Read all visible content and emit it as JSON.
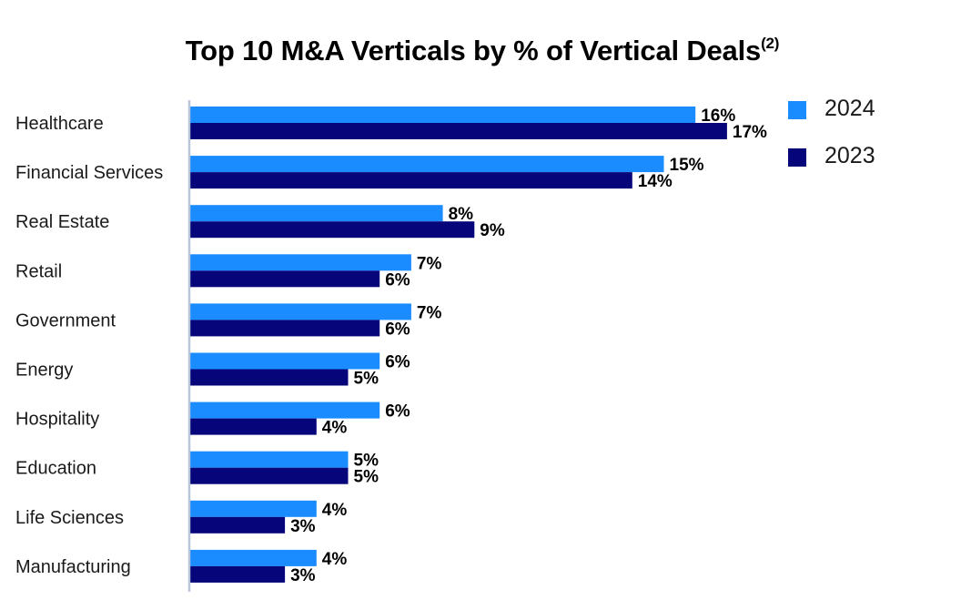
{
  "title": "Top 10 M&A Verticals by % of Vertical Deals",
  "title_superscript": "(2)",
  "legend": [
    {
      "label": "2024",
      "color": "#1a8cff"
    },
    {
      "label": "2023",
      "color": "#06067a"
    }
  ],
  "chart_data": {
    "type": "bar",
    "orientation": "horizontal",
    "title": "Top 10 M&A Verticals by % of Vertical Deals(2)",
    "categories": [
      "Healthcare",
      "Financial Services",
      "Real Estate",
      "Retail",
      "Government",
      "Energy",
      "Hospitality",
      "Education",
      "Life Sciences",
      "Manufacturing"
    ],
    "series": [
      {
        "name": "2024",
        "color": "#1a8cff",
        "values": [
          16,
          15,
          8,
          7,
          7,
          6,
          6,
          5,
          4,
          4
        ],
        "labels": [
          "16%",
          "15%",
          "8%",
          "7%",
          "7%",
          "6%",
          "6%",
          "5%",
          "4%",
          "4%"
        ]
      },
      {
        "name": "2023",
        "color": "#06067a",
        "values": [
          17,
          14,
          9,
          6,
          6,
          5,
          4,
          5,
          3,
          3
        ],
        "labels": [
          "17%",
          "14%",
          "9%",
          "6%",
          "6%",
          "5%",
          "4%",
          "5%",
          "3%",
          "3%"
        ]
      }
    ],
    "xlim": [
      0,
      17
    ],
    "grid": false,
    "legend_position": "top-right"
  }
}
